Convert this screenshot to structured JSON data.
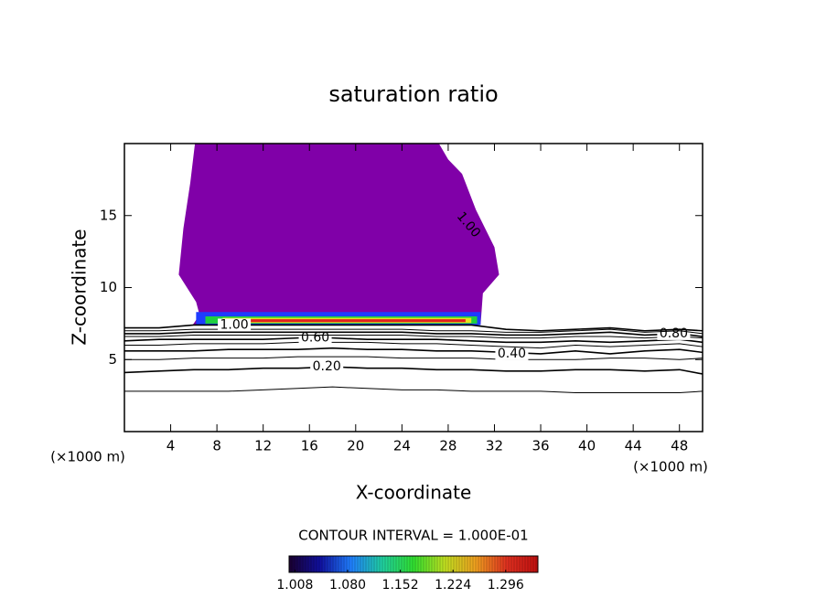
{
  "chart_data": {
    "type": "contour",
    "title": "saturation ratio",
    "x_label": "X-coordinate",
    "y_label": "Z-coordinate",
    "x_unit": "(×1000 m)",
    "y_unit": "(×1000 m)",
    "xlim": [
      0,
      50
    ],
    "ylim": [
      0,
      20
    ],
    "xticks": [
      4,
      8,
      12,
      16,
      20,
      24,
      28,
      32,
      36,
      40,
      44,
      48
    ],
    "yticks": [
      5,
      10,
      15
    ],
    "contour_x": [
      0,
      3,
      6,
      9,
      12,
      15,
      18,
      21,
      24,
      27,
      30,
      33,
      36,
      39,
      42,
      45,
      48,
      50
    ],
    "contours": [
      {
        "level": 0.1,
        "y": [
          2.8,
          2.8,
          2.8,
          2.8,
          2.9,
          3.0,
          3.1,
          3.0,
          2.9,
          2.9,
          2.8,
          2.8,
          2.8,
          2.7,
          2.7,
          2.7,
          2.7,
          2.8
        ]
      },
      {
        "level": 0.2,
        "label": "0.20",
        "y": [
          4.1,
          4.2,
          4.3,
          4.3,
          4.4,
          4.4,
          4.5,
          4.4,
          4.4,
          4.3,
          4.3,
          4.2,
          4.2,
          4.3,
          4.3,
          4.2,
          4.3,
          4.0
        ]
      },
      {
        "level": 0.3,
        "y": [
          5.0,
          5.0,
          5.1,
          5.1,
          5.1,
          5.2,
          5.2,
          5.2,
          5.1,
          5.1,
          5.1,
          5.0,
          5.0,
          5.0,
          5.1,
          5.1,
          5.0,
          5.1
        ]
      },
      {
        "level": 0.4,
        "label": "0.40",
        "y": [
          5.6,
          5.6,
          5.6,
          5.7,
          5.7,
          5.7,
          5.8,
          5.7,
          5.7,
          5.6,
          5.6,
          5.5,
          5.4,
          5.6,
          5.4,
          5.6,
          5.7,
          5.5
        ]
      },
      {
        "level": 0.5,
        "y": [
          6.0,
          6.0,
          6.1,
          6.1,
          6.1,
          6.2,
          6.2,
          6.2,
          6.1,
          6.1,
          6.0,
          5.9,
          5.8,
          6.0,
          5.9,
          6.0,
          6.1,
          5.9
        ]
      },
      {
        "level": 0.6,
        "label": "0.60",
        "y": [
          6.3,
          6.4,
          6.4,
          6.4,
          6.4,
          6.5,
          6.5,
          6.4,
          6.4,
          6.4,
          6.3,
          6.2,
          6.2,
          6.3,
          6.2,
          6.3,
          6.4,
          6.2
        ]
      },
      {
        "level": 0.7,
        "y": [
          6.6,
          6.6,
          6.7,
          6.7,
          6.7,
          6.7,
          6.7,
          6.7,
          6.7,
          6.6,
          6.6,
          6.5,
          6.5,
          6.6,
          6.6,
          6.5,
          6.6,
          6.5
        ]
      },
      {
        "level": 0.8,
        "label": "0.80",
        "y": [
          6.8,
          6.8,
          6.9,
          6.9,
          6.9,
          6.9,
          6.9,
          6.9,
          6.9,
          6.8,
          6.8,
          6.7,
          6.7,
          6.8,
          6.9,
          6.7,
          6.8,
          6.6
        ]
      },
      {
        "level": 0.9,
        "y": [
          7.0,
          7.0,
          7.1,
          7.1,
          7.1,
          7.1,
          7.1,
          7.1,
          7.1,
          7.0,
          7.0,
          6.9,
          6.9,
          7.0,
          7.1,
          6.9,
          7.0,
          6.8
        ]
      },
      {
        "level": 1.0,
        "label": "1.00",
        "y": [
          7.2,
          7.2,
          7.4,
          7.4,
          7.4,
          7.4,
          7.4,
          7.4,
          7.4,
          7.4,
          7.4,
          7.1,
          7.0,
          7.1,
          7.2,
          7.0,
          7.1,
          7.0
        ]
      }
    ],
    "filled_regions": [
      {
        "level": 1.008,
        "color": "#8000a8",
        "x": [
          6.1,
          5.7,
          5.1,
          4.7,
          6.2,
          6.5,
          5.9,
          30.8,
          31.0,
          32.4,
          32.0,
          30.4,
          29.2,
          28.0,
          27.2
        ],
        "y": [
          20,
          17.3,
          14.1,
          10.9,
          9.0,
          8.1,
          7.4,
          7.4,
          9.6,
          10.9,
          12.8,
          15.4,
          17.9,
          18.9,
          20
        ]
      },
      {
        "level": 1.08,
        "color": "#1e3cff",
        "x": [
          6.2,
          30.8,
          30.8,
          6.2
        ],
        "y": [
          7.4,
          7.4,
          8.3,
          8.3
        ]
      },
      {
        "level": 1.152,
        "color": "#20d040",
        "x": [
          7.0,
          30.5,
          30.5,
          7.0
        ],
        "y": [
          7.5,
          7.5,
          8.0,
          8.0
        ]
      },
      {
        "level": 1.224,
        "color": "#e8e020",
        "x": [
          8.5,
          30.0,
          30.0,
          8.5
        ],
        "y": [
          7.55,
          7.55,
          7.9,
          7.9
        ]
      },
      {
        "level": 1.296,
        "color": "#e02020",
        "x": [
          10.0,
          29.5,
          29.5,
          10.0
        ],
        "y": [
          7.6,
          7.6,
          7.8,
          7.8
        ]
      }
    ],
    "annotation": "CONTOUR INTERVAL = 1.000E-01",
    "colorbar": {
      "range": [
        1.0,
        1.34
      ],
      "colors": [
        "#1a0030",
        "#1010a0",
        "#2080ff",
        "#20d0a0",
        "#30e030",
        "#c0e020",
        "#f0a020",
        "#e03020",
        "#c01010"
      ],
      "ticks": [
        {
          "value": 1.008,
          "label": "1.008"
        },
        {
          "value": 1.08,
          "label": "1.080"
        },
        {
          "value": 1.152,
          "label": "1.152"
        },
        {
          "value": 1.224,
          "label": "1.224"
        },
        {
          "value": 1.296,
          "label": "1.296"
        }
      ]
    }
  }
}
